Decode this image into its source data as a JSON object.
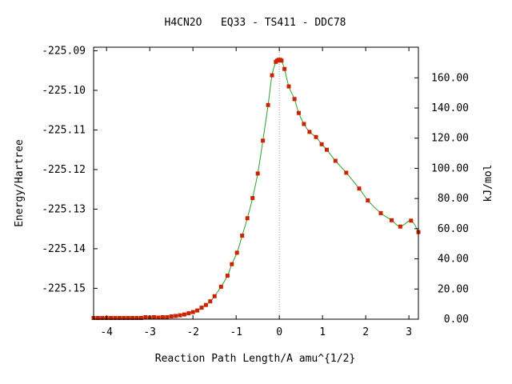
{
  "chart_data": {
    "type": "line",
    "title": "H4CN2O   EQ33 - TS411 - DDC78",
    "xlabel": "Reaction Path Length/A amu^{1/2}",
    "ylabel": "Energy/Hartree",
    "y2label": "kJ/mol",
    "xlim": [
      -4.3,
      3.22
    ],
    "ylim": [
      -225.1578,
      -225.0891
    ],
    "y2lim": [
      0.0,
      180.3
    ],
    "x_ticks": [
      {
        "v": -4,
        "label": "-4"
      },
      {
        "v": -3,
        "label": "-3"
      },
      {
        "v": -2,
        "label": "-2"
      },
      {
        "v": -1,
        "label": "-1"
      },
      {
        "v": 0,
        "label": "0"
      },
      {
        "v": 1,
        "label": "1"
      },
      {
        "v": 2,
        "label": "2"
      },
      {
        "v": 3,
        "label": "3"
      }
    ],
    "y_ticks": [
      {
        "v": -225.09,
        "label": "-225.09"
      },
      {
        "v": -225.1,
        "label": "-225.10"
      },
      {
        "v": -225.11,
        "label": "-225.11"
      },
      {
        "v": -225.12,
        "label": "-225.12"
      },
      {
        "v": -225.13,
        "label": "-225.13"
      },
      {
        "v": -225.14,
        "label": "-225.14"
      },
      {
        "v": -225.15,
        "label": "-225.15"
      }
    ],
    "y2_ticks": [
      {
        "v": 0,
        "label": "0.00"
      },
      {
        "v": 20,
        "label": "20.00"
      },
      {
        "v": 40,
        "label": "40.00"
      },
      {
        "v": 60,
        "label": "60.00"
      },
      {
        "v": 80,
        "label": "80.00"
      },
      {
        "v": 100,
        "label": "100.00"
      },
      {
        "v": 120,
        "label": "120.00"
      },
      {
        "v": 140,
        "label": "140.00"
      },
      {
        "v": 160,
        "label": "160.00"
      }
    ],
    "ts_x": 0.0,
    "colors": {
      "curve": "#2e9e2e",
      "marker": "#cc2200",
      "ts_line": "#999999",
      "frame": "#000000"
    },
    "series": [
      {
        "x": [
          -4.3,
          -4.2,
          -4.1,
          -4.0,
          -3.9,
          -3.8,
          -3.7,
          -3.6,
          -3.5,
          -3.4,
          -3.3,
          -3.2,
          -3.1,
          -3.0,
          -2.9,
          -2.8,
          -2.7,
          -2.6,
          -2.5,
          -2.4,
          -2.3,
          -2.2,
          -2.1,
          -2.0,
          -1.9,
          -1.8,
          -1.7,
          -1.6,
          -1.5,
          -1.35,
          -1.2,
          -1.1,
          -0.98,
          -0.86,
          -0.74,
          -0.62,
          -0.5,
          -0.38,
          -0.26,
          -0.17,
          -0.08,
          -0.05,
          -0.02,
          0.0,
          0.02,
          0.05,
          0.12,
          0.22,
          0.35,
          0.45,
          0.57,
          0.7,
          0.85,
          0.98,
          1.1,
          1.3,
          1.55,
          1.85,
          2.05,
          2.35,
          2.6,
          2.8,
          3.05,
          3.22
        ],
        "y": [
          -225.1575,
          -225.1575,
          -225.1575,
          -225.1575,
          -225.1575,
          -225.1575,
          -225.1575,
          -225.1575,
          -225.1575,
          -225.1575,
          -225.1575,
          -225.1575,
          -225.1573,
          -225.1574,
          -225.1573,
          -225.1574,
          -225.1573,
          -225.1573,
          -225.1571,
          -225.157,
          -225.1568,
          -225.1566,
          -225.1563,
          -225.156,
          -225.1556,
          -225.1549,
          -225.1542,
          -225.1533,
          -225.152,
          -225.1496,
          -225.1468,
          -225.1439,
          -225.141,
          -225.1367,
          -225.1323,
          -225.1272,
          -225.121,
          -225.1127,
          -225.1037,
          -225.0962,
          -225.0928,
          -225.0925,
          -225.0923,
          -225.0924,
          -225.0923,
          -225.0925,
          -225.0946,
          -225.099,
          -225.1022,
          -225.1057,
          -225.1085,
          -225.1105,
          -225.1118,
          -225.1136,
          -225.115,
          -225.1178,
          -225.1208,
          -225.1248,
          -225.1278,
          -225.131,
          -225.1328,
          -225.1344,
          -225.1329,
          -225.1358
        ]
      }
    ]
  }
}
